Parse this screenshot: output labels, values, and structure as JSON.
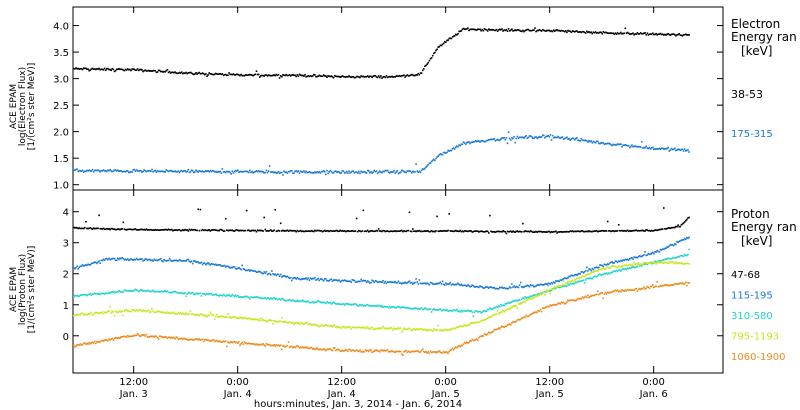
{
  "chart_data": [
    {
      "type": "scatter",
      "panel": "electron",
      "ylabel": [
        "ACE EPAM",
        "log(Electron Flux)",
        "[1/(cm²s ster MeV)]"
      ],
      "ylim": [
        0.9,
        4.35
      ],
      "yticks": [
        1.0,
        1.5,
        2.0,
        2.5,
        3.0,
        3.5,
        4.0
      ],
      "ytick_labels": [
        "1.0",
        "1.5",
        "2.0",
        "2.5",
        "3.0",
        "3.5",
        "4.0"
      ],
      "legend_title": [
        "Electron",
        "Energy ran",
        "[keV]"
      ],
      "legend_placement": "right",
      "grid": false,
      "series": [
        {
          "name": "38-53",
          "color": "#000000",
          "scatter": 0.03,
          "points": [
            [
              "2014-01-03 05:00",
              3.2
            ],
            [
              "2014-01-03 12:00",
              3.18
            ],
            [
              "2014-01-03 18:00",
              3.12
            ],
            [
              "2014-01-04 00:00",
              3.08
            ],
            [
              "2014-01-04 06:00",
              3.08
            ],
            [
              "2014-01-04 12:00",
              3.05
            ],
            [
              "2014-01-04 18:00",
              3.05
            ],
            [
              "2014-01-04 21:00",
              3.1
            ],
            [
              "2014-01-04 23:00",
              3.6
            ],
            [
              "2014-01-05 02:00",
              3.95
            ],
            [
              "2014-01-05 06:00",
              3.93
            ],
            [
              "2014-01-05 12:00",
              3.92
            ],
            [
              "2014-01-05 18:00",
              3.88
            ],
            [
              "2014-01-06 00:00",
              3.85
            ],
            [
              "2014-01-06 04:00",
              3.84
            ]
          ]
        },
        {
          "name": "175-315",
          "color": "#1a78d6",
          "scatter": 0.04,
          "points": [
            [
              "2014-01-03 05:00",
              1.28
            ],
            [
              "2014-01-03 12:00",
              1.27
            ],
            [
              "2014-01-04 00:00",
              1.26
            ],
            [
              "2014-01-04 12:00",
              1.25
            ],
            [
              "2014-01-04 21:00",
              1.26
            ],
            [
              "2014-01-04 23:00",
              1.55
            ],
            [
              "2014-01-05 02:00",
              1.8
            ],
            [
              "2014-01-05 06:00",
              1.88
            ],
            [
              "2014-01-05 12:00",
              1.93
            ],
            [
              "2014-01-05 18:00",
              1.8
            ],
            [
              "2014-01-06 00:00",
              1.7
            ],
            [
              "2014-01-06 04:00",
              1.66
            ]
          ]
        }
      ]
    },
    {
      "type": "scatter",
      "panel": "proton",
      "ylabel": [
        "ACE EPAM",
        "log(Proton Flux)",
        "[1/(cm²s ster MeV)]"
      ],
      "ylim": [
        -1.2,
        4.7
      ],
      "yticks": [
        0,
        1,
        2,
        3,
        4
      ],
      "ytick_labels": [
        "0",
        "1",
        "2",
        "3",
        "4"
      ],
      "xlabel": "hours:minutes, Jan.  3, 2014 - Jan.  6, 2014",
      "xlim": [
        "2014-01-03 05:00",
        "2014-01-06 08:00"
      ],
      "xticks": [
        "2014-01-03 12:00",
        "2014-01-04 00:00",
        "2014-01-04 12:00",
        "2014-01-05 00:00",
        "2014-01-05 12:00",
        "2014-01-06 00:00"
      ],
      "xtick_labels": [
        [
          "12:00",
          "Jan. 3"
        ],
        [
          "0:00",
          "Jan. 4"
        ],
        [
          "12:00",
          "Jan. 4"
        ],
        [
          "0:00",
          "Jan. 5"
        ],
        [
          "12:00",
          "Jan. 5"
        ],
        [
          "0:00",
          "Jan. 6"
        ]
      ],
      "legend_title": [
        "Proton",
        "Energy ran",
        "[keV]"
      ],
      "legend_placement": "right",
      "grid": false,
      "series": [
        {
          "name": "47-68",
          "color": "#000000",
          "scatter": 0.03,
          "points": [
            [
              "2014-01-03 05:00",
              3.5
            ],
            [
              "2014-01-03 12:00",
              3.45
            ],
            [
              "2014-01-04 00:00",
              3.42
            ],
            [
              "2014-01-04 12:00",
              3.4
            ],
            [
              "2014-01-05 00:00",
              3.4
            ],
            [
              "2014-01-05 12:00",
              3.38
            ],
            [
              "2014-01-06 00:00",
              3.42
            ],
            [
              "2014-01-06 03:00",
              3.55
            ],
            [
              "2014-01-06 04:00",
              3.85
            ]
          ]
        },
        {
          "name": "115-195",
          "color": "#1a78d6",
          "scatter": 0.06,
          "points": [
            [
              "2014-01-03 05:00",
              2.2
            ],
            [
              "2014-01-03 09:00",
              2.5
            ],
            [
              "2014-01-03 18:00",
              2.45
            ],
            [
              "2014-01-04 00:00",
              2.2
            ],
            [
              "2014-01-04 06:00",
              1.9
            ],
            [
              "2014-01-04 12:00",
              1.8
            ],
            [
              "2014-01-05 00:00",
              1.7
            ],
            [
              "2014-01-05 06:00",
              1.55
            ],
            [
              "2014-01-05 12:00",
              1.7
            ],
            [
              "2014-01-05 18:00",
              2.3
            ],
            [
              "2014-01-06 00:00",
              2.7
            ],
            [
              "2014-01-06 04:00",
              3.2
            ]
          ]
        },
        {
          "name": "310-580",
          "color": "#22d3cf",
          "scatter": 0.05,
          "points": [
            [
              "2014-01-03 05:00",
              1.3
            ],
            [
              "2014-01-03 12:00",
              1.5
            ],
            [
              "2014-01-04 00:00",
              1.3
            ],
            [
              "2014-01-04 12:00",
              1.05
            ],
            [
              "2014-01-05 00:00",
              0.85
            ],
            [
              "2014-01-05 04:00",
              0.8
            ],
            [
              "2014-01-05 12:00",
              1.5
            ],
            [
              "2014-01-05 18:00",
              2.0
            ],
            [
              "2014-01-06 00:00",
              2.4
            ],
            [
              "2014-01-06 04:00",
              2.65
            ]
          ]
        },
        {
          "name": "795-1193",
          "color": "#c8e61e",
          "scatter": 0.05,
          "points": [
            [
              "2014-01-03 05:00",
              0.7
            ],
            [
              "2014-01-03 12:00",
              0.85
            ],
            [
              "2014-01-04 00:00",
              0.6
            ],
            [
              "2014-01-04 12:00",
              0.3
            ],
            [
              "2014-01-05 00:00",
              0.2
            ],
            [
              "2014-01-05 04:00",
              0.5
            ],
            [
              "2014-01-05 12:00",
              1.5
            ],
            [
              "2014-01-05 18:00",
              2.2
            ],
            [
              "2014-01-06 00:00",
              2.4
            ],
            [
              "2014-01-06 04:00",
              2.35
            ]
          ]
        },
        {
          "name": "1060-1900",
          "color": "#ee8a1c",
          "scatter": 0.06,
          "points": [
            [
              "2014-01-03 05:00",
              -0.3
            ],
            [
              "2014-01-03 12:00",
              0.05
            ],
            [
              "2014-01-04 00:00",
              -0.2
            ],
            [
              "2014-01-04 12:00",
              -0.45
            ],
            [
              "2014-01-05 00:00",
              -0.5
            ],
            [
              "2014-01-05 04:00",
              0.0
            ],
            [
              "2014-01-05 12:00",
              1.0
            ],
            [
              "2014-01-05 18:00",
              1.4
            ],
            [
              "2014-01-06 00:00",
              1.6
            ],
            [
              "2014-01-06 04:00",
              1.75
            ]
          ]
        }
      ]
    }
  ]
}
